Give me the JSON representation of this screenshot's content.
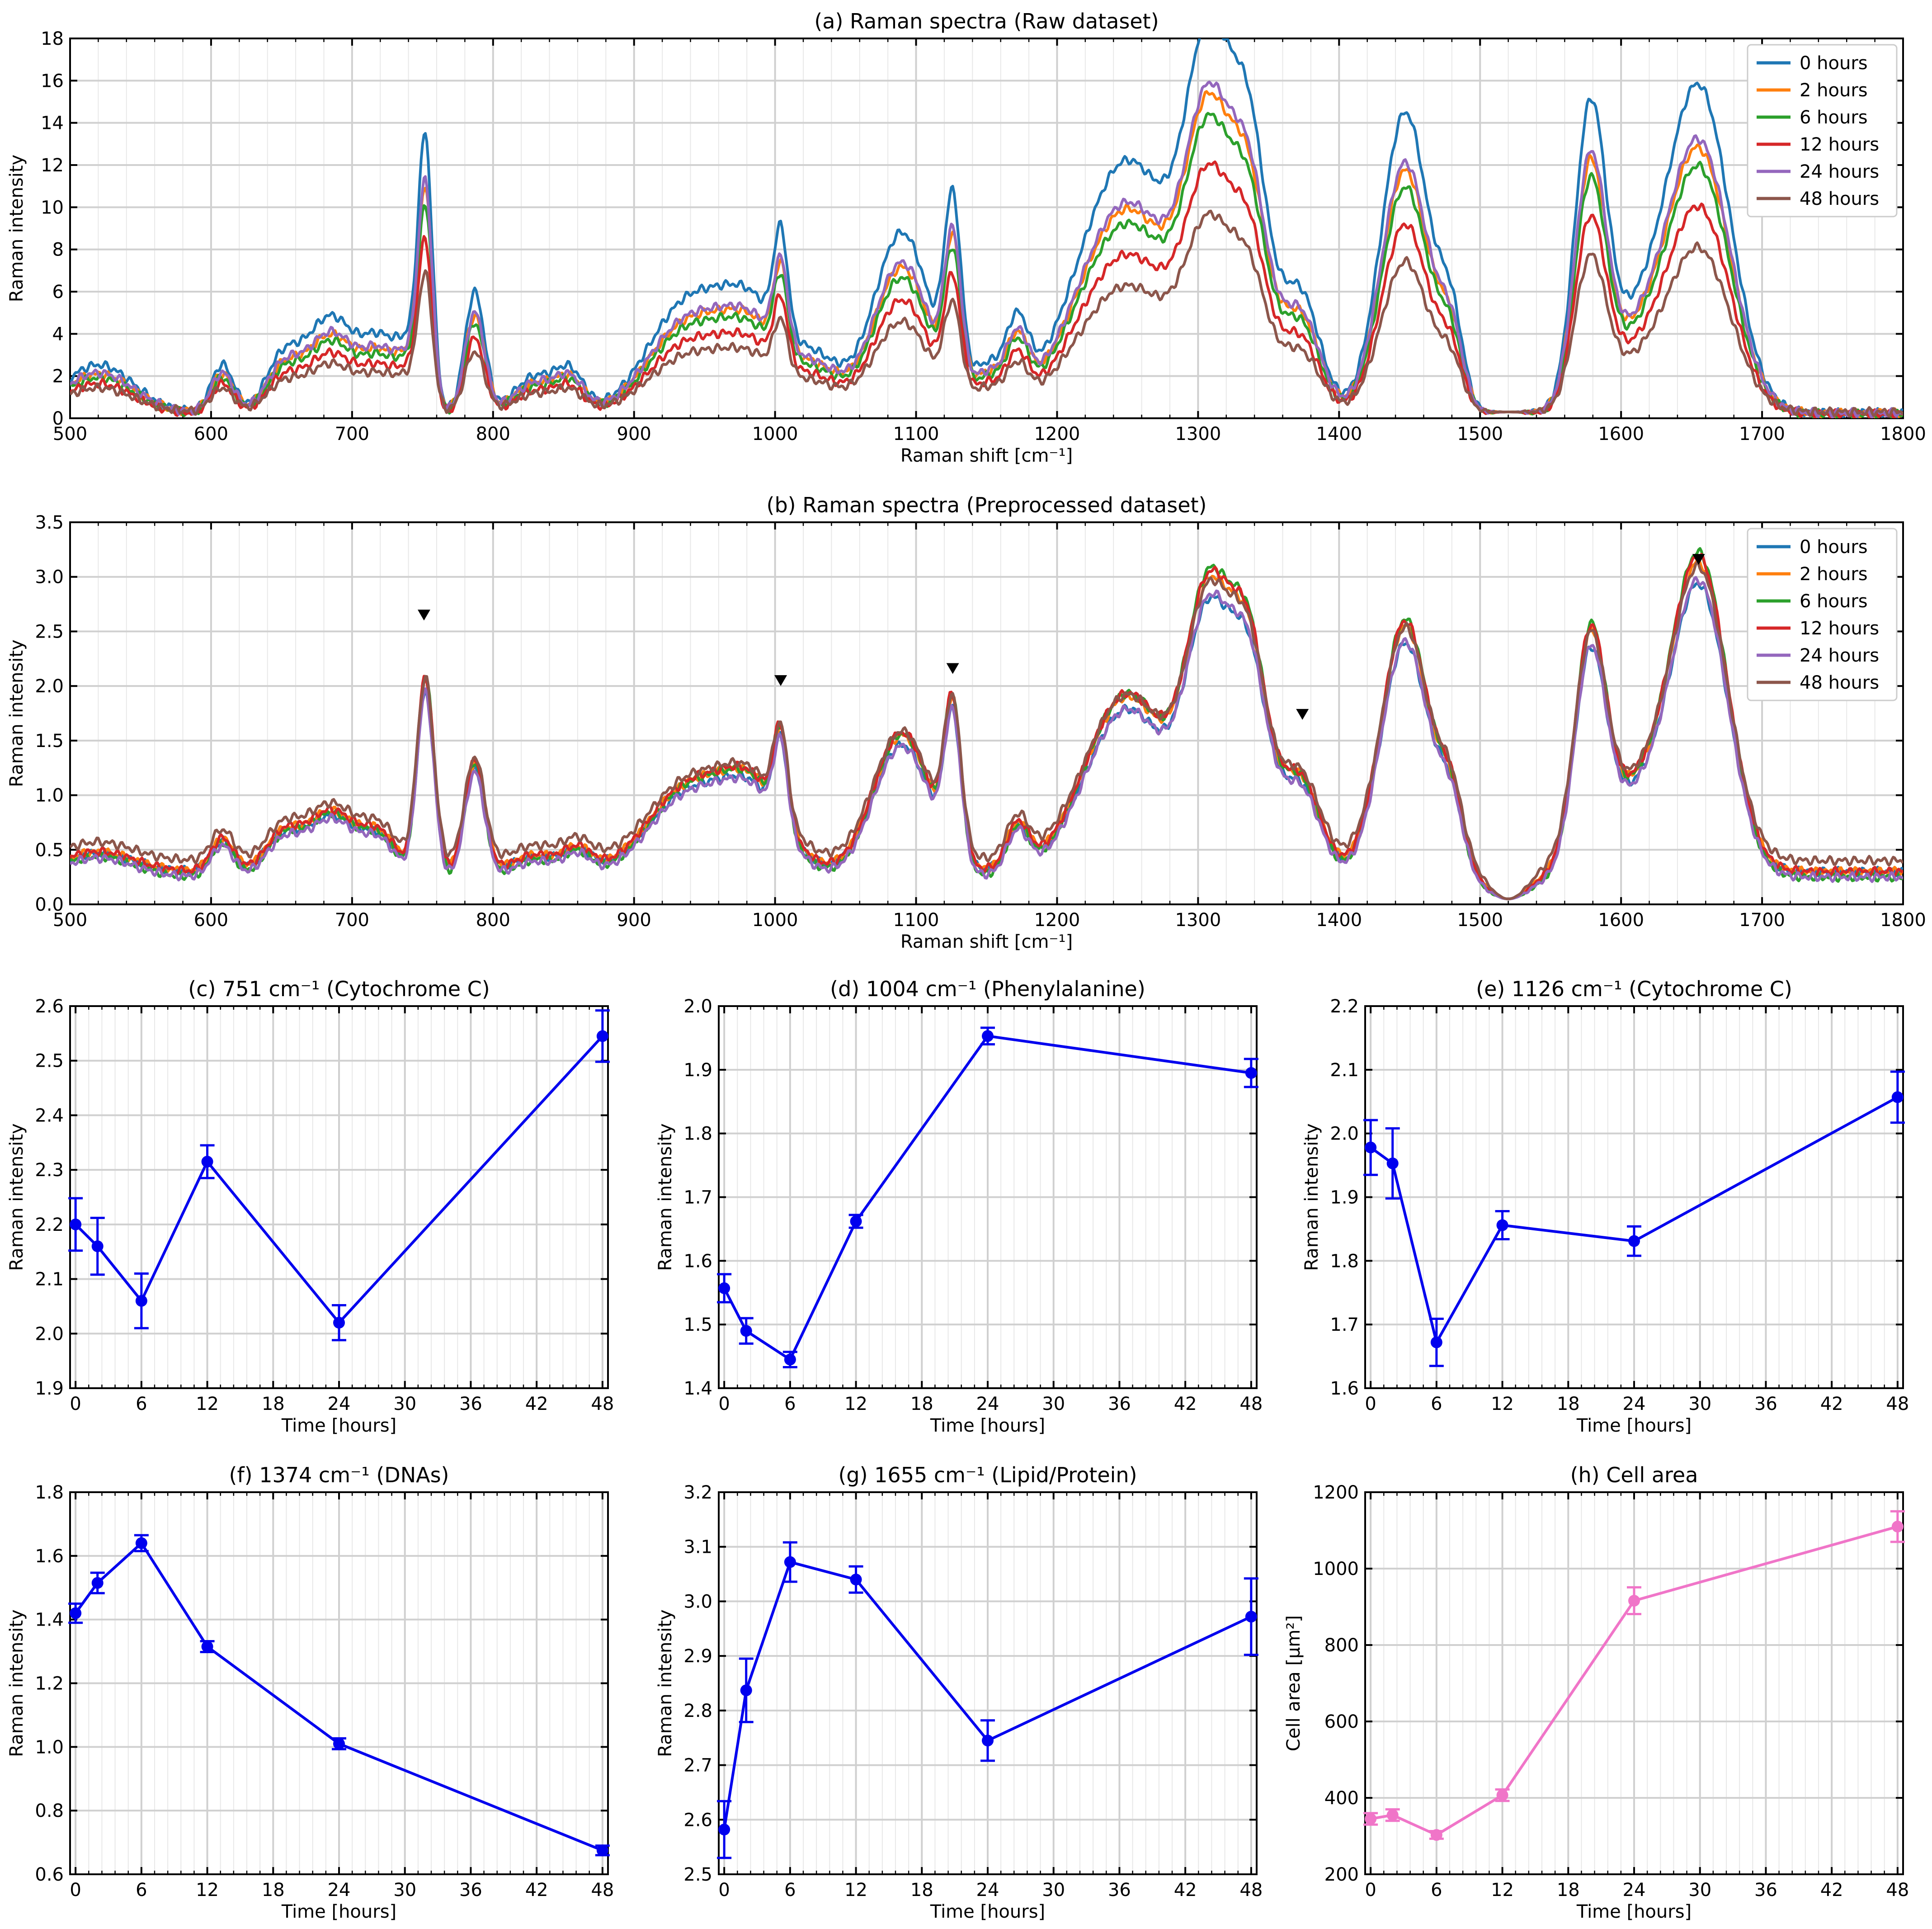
{
  "chart_data": [
    {
      "id": "a",
      "type": "line",
      "title": "(a) Raman spectra (Raw dataset)",
      "xlabel": "Raman shift [cm⁻¹]",
      "ylabel": "Raman intensity",
      "xlim": [
        500,
        1800
      ],
      "ylim": [
        0,
        18
      ],
      "xticks": [
        500,
        600,
        700,
        800,
        900,
        1000,
        1100,
        1200,
        1300,
        1400,
        1500,
        1600,
        1700,
        1800
      ],
      "yticks": [
        0,
        2,
        4,
        6,
        8,
        10,
        12,
        14,
        16,
        18
      ],
      "legend_position": "top-right",
      "peaks": [
        {
          "pos": 520,
          "w": 25,
          "h": 2.0
        },
        {
          "pos": 608,
          "w": 8,
          "h": 2.0
        },
        {
          "pos": 650,
          "w": 12,
          "h": 2.0
        },
        {
          "pos": 685,
          "w": 18,
          "h": 4.0
        },
        {
          "pos": 720,
          "w": 12,
          "h": 2.5
        },
        {
          "pos": 752,
          "w": 5,
          "h": 10.0
        },
        {
          "pos": 742,
          "w": 10,
          "h": 2.5
        },
        {
          "pos": 787,
          "w": 7,
          "h": 5.0
        },
        {
          "pos": 830,
          "w": 15,
          "h": 1.5
        },
        {
          "pos": 855,
          "w": 10,
          "h": 1.5
        },
        {
          "pos": 938,
          "w": 28,
          "h": 4.5
        },
        {
          "pos": 985,
          "w": 22,
          "h": 3.8
        },
        {
          "pos": 1004,
          "w": 5,
          "h": 4.2
        },
        {
          "pos": 1030,
          "w": 18,
          "h": 2.0
        },
        {
          "pos": 1090,
          "w": 20,
          "h": 7.5
        },
        {
          "pos": 1126,
          "w": 6,
          "h": 7.5
        },
        {
          "pos": 1150,
          "w": 12,
          "h": 1.8
        },
        {
          "pos": 1172,
          "w": 8,
          "h": 3.0
        },
        {
          "pos": 1250,
          "w": 35,
          "h": 10.5
        },
        {
          "pos": 1308,
          "w": 16,
          "h": 13.0
        },
        {
          "pos": 1337,
          "w": 13,
          "h": 10.0
        },
        {
          "pos": 1372,
          "w": 14,
          "h": 5.0
        },
        {
          "pos": 1447,
          "w": 17,
          "h": 12.5
        },
        {
          "pos": 1480,
          "w": 9,
          "h": 3.5
        },
        {
          "pos": 1578,
          "w": 11,
          "h": 11.5
        },
        {
          "pos": 1610,
          "w": 25,
          "h": 3.5
        },
        {
          "pos": 1656,
          "w": 22,
          "h": 13.0
        }
      ],
      "dips": [
        {
          "pos": 1520,
          "w": 15,
          "h": 0.3
        }
      ],
      "series": [
        {
          "name": "0 hours",
          "color": "#1f77b4",
          "scale": 1.14,
          "base": 0.25
        },
        {
          "name": "2 hours",
          "color": "#ff7f0e",
          "scale": 0.92,
          "base": 0.25
        },
        {
          "name": "6 hours",
          "color": "#2ca02c",
          "scale": 0.86,
          "base": 0.2
        },
        {
          "name": "12 hours",
          "color": "#d62728",
          "scale": 0.72,
          "base": 0.2
        },
        {
          "name": "24 hours",
          "color": "#9467bd",
          "scale": 0.95,
          "base": 0.25
        },
        {
          "name": "48 hours",
          "color": "#8c564b",
          "scale": 0.57,
          "base": 0.3
        }
      ]
    },
    {
      "id": "b",
      "type": "line",
      "title": "(b) Raman spectra (Preprocessed dataset)",
      "xlabel": "Raman shift [cm⁻¹]",
      "ylabel": "Raman intensity",
      "xlim": [
        500,
        1800
      ],
      "ylim": [
        0,
        3.5
      ],
      "xticks": [
        500,
        600,
        700,
        800,
        900,
        1000,
        1100,
        1200,
        1300,
        1400,
        1500,
        1600,
        1700,
        1800
      ],
      "yticks": [
        0.0,
        0.5,
        1.0,
        1.5,
        2.0,
        2.5,
        3.0,
        3.5
      ],
      "yticklabels": [
        "0.0",
        "0.5",
        "1.0",
        "1.5",
        "2.0",
        "2.5",
        "3.0",
        "3.5"
      ],
      "legend_position": "top-right",
      "markers": [
        {
          "x": 751,
          "y": 2.65
        },
        {
          "x": 1004,
          "y": 2.05
        },
        {
          "x": 1126,
          "y": 2.16
        },
        {
          "x": 1374,
          "y": 1.74
        },
        {
          "x": 1655,
          "y": 3.16
        }
      ],
      "peaks": [
        {
          "pos": 520,
          "w": 25,
          "h": 0.18
        },
        {
          "pos": 608,
          "w": 8,
          "h": 0.3
        },
        {
          "pos": 650,
          "w": 12,
          "h": 0.3
        },
        {
          "pos": 685,
          "w": 18,
          "h": 0.55
        },
        {
          "pos": 720,
          "w": 12,
          "h": 0.3
        },
        {
          "pos": 752,
          "w": 6,
          "h": 1.75
        },
        {
          "pos": 787,
          "w": 7,
          "h": 1.0
        },
        {
          "pos": 830,
          "w": 15,
          "h": 0.15
        },
        {
          "pos": 860,
          "w": 10,
          "h": 0.2
        },
        {
          "pos": 938,
          "w": 28,
          "h": 0.75
        },
        {
          "pos": 985,
          "w": 22,
          "h": 0.7
        },
        {
          "pos": 1004,
          "w": 5,
          "h": 0.8
        },
        {
          "pos": 1090,
          "w": 20,
          "h": 1.25
        },
        {
          "pos": 1126,
          "w": 6,
          "h": 1.35
        },
        {
          "pos": 1172,
          "w": 8,
          "h": 0.4
        },
        {
          "pos": 1250,
          "w": 30,
          "h": 1.6
        },
        {
          "pos": 1308,
          "w": 16,
          "h": 2.3
        },
        {
          "pos": 1337,
          "w": 13,
          "h": 1.8
        },
        {
          "pos": 1372,
          "w": 14,
          "h": 0.85
        },
        {
          "pos": 1447,
          "w": 17,
          "h": 2.25
        },
        {
          "pos": 1480,
          "w": 9,
          "h": 0.6
        },
        {
          "pos": 1578,
          "w": 11,
          "h": 1.9
        },
        {
          "pos": 1610,
          "w": 25,
          "h": 0.7
        },
        {
          "pos": 1656,
          "w": 20,
          "h": 2.7
        }
      ],
      "dips": [
        {
          "pos": 1520,
          "w": 15,
          "h": 0.05
        }
      ],
      "series": [
        {
          "name": "0 hours",
          "color": "#1f77b4",
          "scale": 0.93,
          "base": 0.3
        },
        {
          "name": "2 hours",
          "color": "#ff7f0e",
          "scale": 1.0,
          "base": 0.3
        },
        {
          "name": "6 hours",
          "color": "#2ca02c",
          "scale": 1.05,
          "base": 0.25
        },
        {
          "name": "12 hours",
          "color": "#d62728",
          "scale": 1.02,
          "base": 0.3
        },
        {
          "name": "24 hours",
          "color": "#9467bd",
          "scale": 0.96,
          "base": 0.25
        },
        {
          "name": "48 hours",
          "color": "#8c564b",
          "scale": 0.95,
          "base": 0.4
        }
      ]
    },
    {
      "id": "c",
      "type": "line",
      "title": "(c) 751 cm⁻¹ (Cytochrome C)",
      "xlabel": "Time [hours]",
      "ylabel": "Raman intensity",
      "xlim": [
        -0.5,
        48.5
      ],
      "ylim": [
        1.9,
        2.6
      ],
      "xticks": [
        0,
        6,
        12,
        18,
        24,
        30,
        36,
        42,
        48
      ],
      "yticks": [
        1.9,
        2.0,
        2.1,
        2.2,
        2.3,
        2.4,
        2.5,
        2.6
      ],
      "yticklabels": [
        "1.9",
        "2.0",
        "2.1",
        "2.2",
        "2.3",
        "2.4",
        "2.5",
        "2.6"
      ],
      "color": "#0000ee",
      "x": [
        0,
        2,
        6,
        12,
        24,
        48
      ],
      "y": [
        2.2,
        2.16,
        2.06,
        2.315,
        2.02,
        2.545
      ],
      "err": [
        0.048,
        0.052,
        0.05,
        0.03,
        0.032,
        0.047
      ]
    },
    {
      "id": "d",
      "type": "line",
      "title": "(d) 1004 cm⁻¹ (Phenylalanine)",
      "xlabel": "Time [hours]",
      "ylabel": "Raman intensity",
      "xlim": [
        -0.5,
        48.5
      ],
      "ylim": [
        1.4,
        2.0
      ],
      "xticks": [
        0,
        6,
        12,
        18,
        24,
        30,
        36,
        42,
        48
      ],
      "yticks": [
        1.4,
        1.5,
        1.6,
        1.7,
        1.8,
        1.9,
        2.0
      ],
      "yticklabels": [
        "1.4",
        "1.5",
        "1.6",
        "1.7",
        "1.8",
        "1.9",
        "2.0"
      ],
      "color": "#0000ee",
      "x": [
        0,
        2,
        6,
        12,
        24,
        48
      ],
      "y": [
        1.557,
        1.49,
        1.445,
        1.662,
        1.953,
        1.895
      ],
      "err": [
        0.022,
        0.02,
        0.012,
        0.01,
        0.013,
        0.022
      ]
    },
    {
      "id": "e",
      "type": "line",
      "title": "(e) 1126 cm⁻¹ (Cytochrome C)",
      "xlabel": "Time [hours]",
      "ylabel": "Raman intensity",
      "xlim": [
        -0.5,
        48.5
      ],
      "ylim": [
        1.6,
        2.2
      ],
      "xticks": [
        0,
        6,
        12,
        18,
        24,
        30,
        36,
        42,
        48
      ],
      "yticks": [
        1.6,
        1.7,
        1.8,
        1.9,
        2.0,
        2.1,
        2.2
      ],
      "yticklabels": [
        "1.6",
        "1.7",
        "1.8",
        "1.9",
        "2.0",
        "2.1",
        "2.2"
      ],
      "color": "#0000ee",
      "x": [
        0,
        2,
        6,
        12,
        24,
        48
      ],
      "y": [
        1.978,
        1.953,
        1.672,
        1.856,
        1.831,
        2.057
      ],
      "err": [
        0.043,
        0.055,
        0.037,
        0.022,
        0.023,
        0.04
      ]
    },
    {
      "id": "f",
      "type": "line",
      "title": "(f) 1374 cm⁻¹ (DNAs)",
      "xlabel": "Time [hours]",
      "ylabel": "Raman intensity",
      "xlim": [
        -0.5,
        48.5
      ],
      "ylim": [
        0.6,
        1.8
      ],
      "xticks": [
        0,
        6,
        12,
        18,
        24,
        30,
        36,
        42,
        48
      ],
      "yticks": [
        0.6,
        0.8,
        1.0,
        1.2,
        1.4,
        1.6,
        1.8
      ],
      "yticklabels": [
        "0.6",
        "0.8",
        "1.0",
        "1.2",
        "1.4",
        "1.6",
        "1.8"
      ],
      "color": "#0000ee",
      "x": [
        0,
        2,
        6,
        12,
        24,
        48
      ],
      "y": [
        1.42,
        1.515,
        1.64,
        1.315,
        1.01,
        0.675
      ],
      "err": [
        0.03,
        0.032,
        0.025,
        0.017,
        0.017,
        0.015
      ]
    },
    {
      "id": "g",
      "type": "line",
      "title": "(g) 1655 cm⁻¹ (Lipid/Protein)",
      "xlabel": "Time [hours]",
      "ylabel": "Raman intensity",
      "xlim": [
        -0.5,
        48.5
      ],
      "ylim": [
        2.5,
        3.2
      ],
      "xticks": [
        0,
        6,
        12,
        18,
        24,
        30,
        36,
        42,
        48
      ],
      "yticks": [
        2.5,
        2.6,
        2.7,
        2.8,
        2.9,
        3.0,
        3.1,
        3.2
      ],
      "yticklabels": [
        "2.5",
        "2.6",
        "2.7",
        "2.8",
        "2.9",
        "3.0",
        "3.1",
        "3.2"
      ],
      "color": "#0000ee",
      "x": [
        0,
        2,
        6,
        12,
        24,
        48
      ],
      "y": [
        2.582,
        2.837,
        3.072,
        3.04,
        2.745,
        2.972
      ],
      "err": [
        0.052,
        0.058,
        0.036,
        0.024,
        0.037,
        0.07
      ]
    },
    {
      "id": "h",
      "type": "line",
      "title": "(h) Cell area",
      "xlabel": "Time [hours]",
      "ylabel": "Cell area [μm²]",
      "xlim": [
        -0.5,
        48.5
      ],
      "ylim": [
        200,
        1200
      ],
      "xticks": [
        0,
        6,
        12,
        18,
        24,
        30,
        36,
        42,
        48
      ],
      "yticks": [
        200,
        400,
        600,
        800,
        1000,
        1200
      ],
      "yticklabels": [
        "200",
        "400",
        "600",
        "800",
        "1000",
        "1200"
      ],
      "color": "#f075c8",
      "x": [
        0,
        2,
        6,
        12,
        24,
        48
      ],
      "y": [
        345,
        355,
        303,
        407,
        916,
        1110
      ],
      "err": [
        15,
        15,
        10,
        15,
        35,
        40
      ]
    }
  ]
}
